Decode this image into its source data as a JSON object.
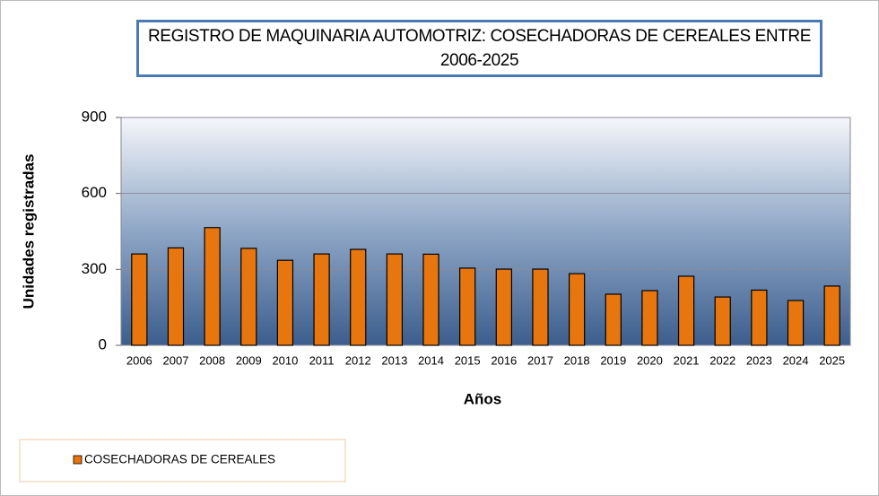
{
  "chart_data": {
    "type": "bar",
    "title": "REGISTRO DE MAQUINARIA AUTOMOTRIZ: COSECHADORAS DE CEREALES ENTRE 2006-2025",
    "x_label": "Años",
    "y_label": "Unidades registradas",
    "categories": [
      "2006",
      "2007",
      "2008",
      "2009",
      "2010",
      "2011",
      "2012",
      "2013",
      "2014",
      "2015",
      "2016",
      "2017",
      "2018",
      "2019",
      "2020",
      "2021",
      "2022",
      "2023",
      "2024",
      "2025"
    ],
    "series": [
      {
        "name": "COSECHADORAS DE CEREALES",
        "color": "#e8760f",
        "values": [
          361,
          385,
          465,
          383,
          336,
          361,
          379,
          361,
          360,
          305,
          301,
          301,
          283,
          202,
          216,
          273,
          191,
          218,
          177,
          234
        ]
      }
    ],
    "ylim": [
      0,
      900
    ],
    "yticks": [
      0,
      300,
      600,
      900
    ],
    "grid": true,
    "legend": "bottom-left"
  }
}
